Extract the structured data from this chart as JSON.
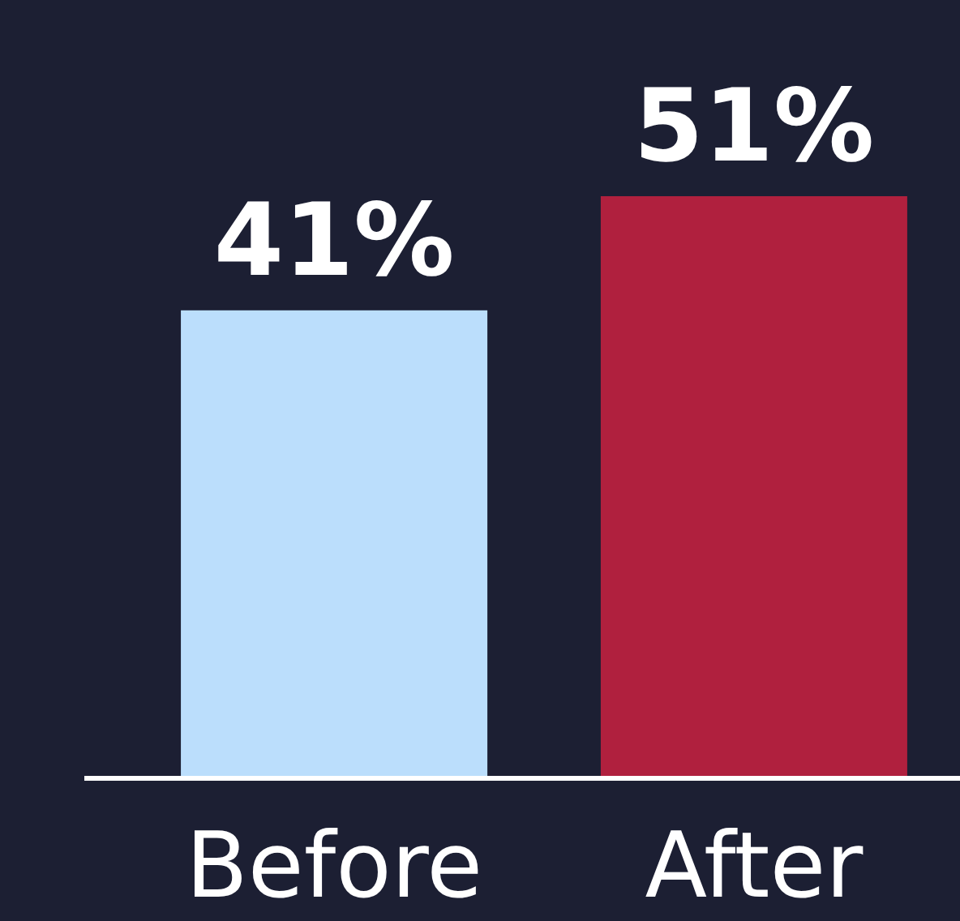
{
  "chart_data": {
    "type": "bar",
    "categories": [
      "Before",
      "After"
    ],
    "values": [
      41,
      51
    ],
    "colors": [
      "#bbdefc",
      "#b0203e"
    ],
    "value_labels": [
      "41%",
      "51%"
    ]
  }
}
